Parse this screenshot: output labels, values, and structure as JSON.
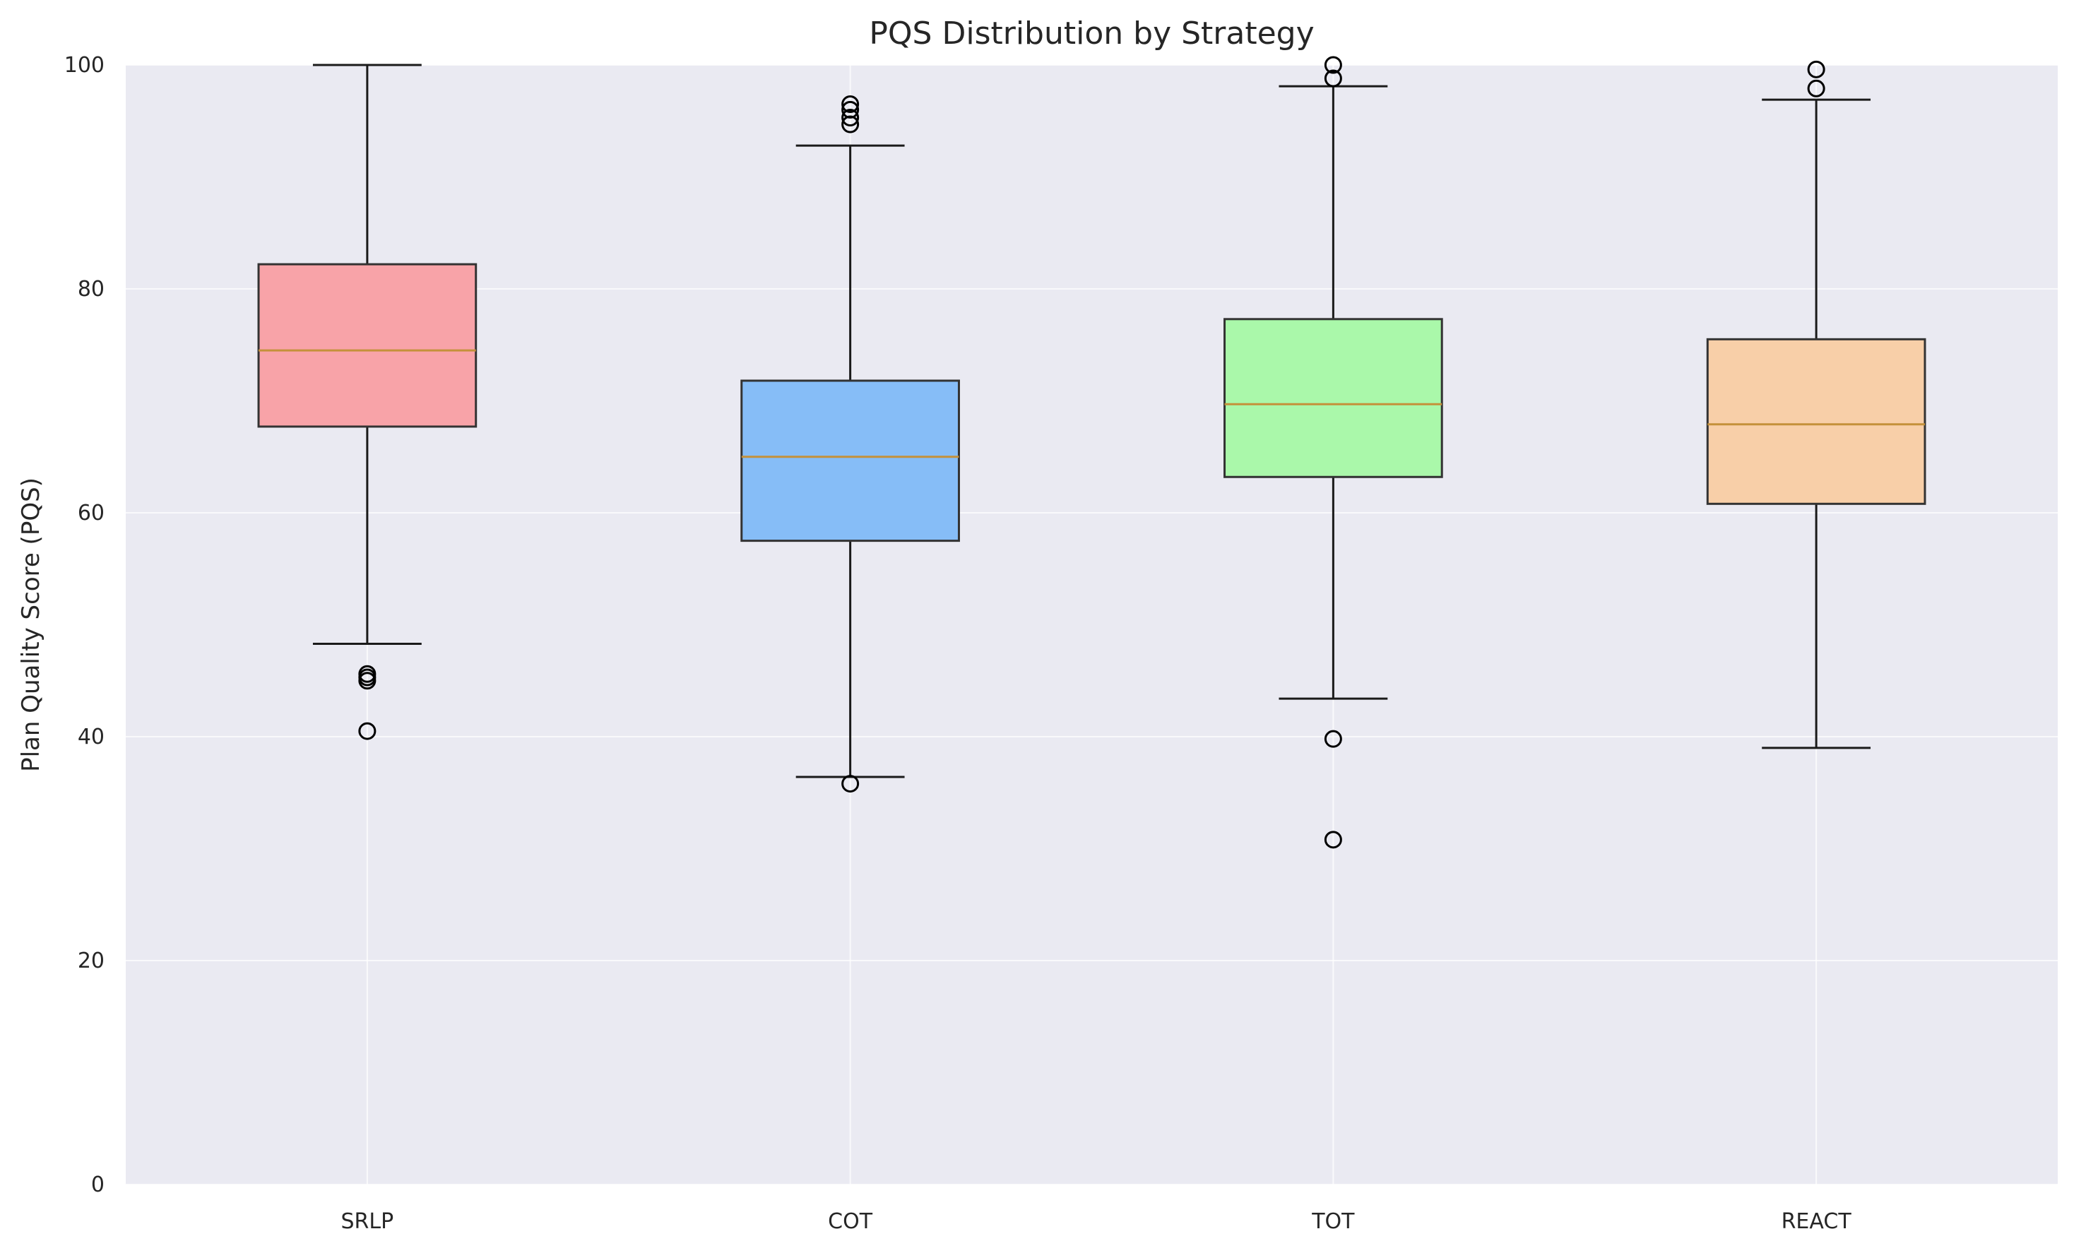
{
  "chart_data": {
    "type": "box",
    "title": "PQS Distribution by Strategy",
    "xlabel": "",
    "ylabel": "Plan Quality Score (PQS)",
    "ylim": [
      0,
      100
    ],
    "yticks": [
      0,
      20,
      40,
      60,
      80,
      100
    ],
    "grid": true,
    "categories": [
      "SRLP",
      "COT",
      "TOT",
      "REACT"
    ],
    "boxes": [
      {
        "category": "SRLP",
        "whisker_low": 48.3,
        "q1": 67.7,
        "median": 74.5,
        "q3": 82.2,
        "whisker_high": 100,
        "outliers": [
          45.6,
          45.3,
          45.0,
          40.5
        ],
        "color": "#f8a3a8"
      },
      {
        "category": "COT",
        "whisker_low": 36.4,
        "q1": 57.5,
        "median": 65.0,
        "q3": 71.8,
        "whisker_high": 92.8,
        "outliers": [
          96.5,
          96.0,
          95.3,
          94.7,
          35.8
        ],
        "color": "#86bdf7"
      },
      {
        "category": "TOT",
        "whisker_low": 43.4,
        "q1": 63.2,
        "median": 69.7,
        "q3": 77.3,
        "whisker_high": 98.1,
        "outliers": [
          100,
          98.8,
          39.8,
          30.8
        ],
        "color": "#aaf8aa"
      },
      {
        "category": "REACT",
        "whisker_low": 39.0,
        "q1": 60.8,
        "median": 67.9,
        "q3": 75.5,
        "whisker_high": 96.9,
        "outliers": [
          99.6,
          97.9
        ],
        "color": "#f8cfa8"
      }
    ]
  }
}
